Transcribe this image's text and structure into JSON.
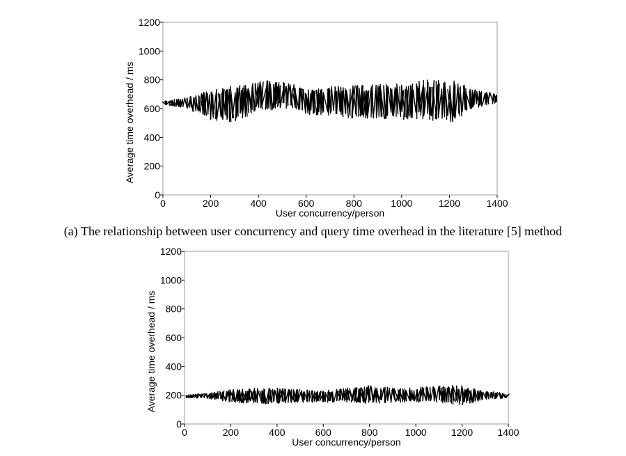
{
  "caption_a": "(a) The relationship between user concurrency and query time overhead in the literature [5] method",
  "chart_data": [
    {
      "type": "line",
      "title": "",
      "xlabel": "User concurrency/person",
      "ylabel": "Average time overhead / ms",
      "xlim": [
        0,
        1400
      ],
      "ylim": [
        0,
        1200
      ],
      "xticks": [
        0,
        200,
        400,
        600,
        800,
        1000,
        1200,
        1400
      ],
      "yticks": [
        0,
        200,
        400,
        600,
        800,
        1000,
        1200
      ],
      "grid": false,
      "series": [
        {
          "x": [
            0,
            100,
            200,
            300,
            400,
            500,
            600,
            700,
            800,
            900,
            1000,
            1100,
            1200,
            1300,
            1400
          ],
          "y_min": [
            630,
            600,
            520,
            500,
            580,
            600,
            560,
            550,
            530,
            530,
            520,
            520,
            500,
            600,
            640
          ],
          "y_max": [
            650,
            680,
            740,
            760,
            790,
            800,
            730,
            760,
            760,
            770,
            780,
            800,
            800,
            740,
            700
          ],
          "y_mean": [
            640,
            640,
            630,
            630,
            690,
            700,
            640,
            650,
            640,
            650,
            650,
            660,
            650,
            670,
            670
          ]
        }
      ]
    },
    {
      "type": "line",
      "title": "",
      "xlabel": "User concurrency/person",
      "ylabel": "Average time overhead / ms",
      "xlim": [
        0,
        1400
      ],
      "ylim": [
        0,
        1200
      ],
      "xticks": [
        0,
        200,
        400,
        600,
        800,
        1000,
        1200,
        1400
      ],
      "yticks": [
        0,
        200,
        400,
        600,
        800,
        1000,
        1200
      ],
      "grid": false,
      "series": [
        {
          "x": [
            0,
            100,
            200,
            300,
            400,
            500,
            600,
            700,
            800,
            900,
            1000,
            1100,
            1200,
            1300,
            1400
          ],
          "y_min": [
            180,
            180,
            150,
            140,
            140,
            150,
            150,
            150,
            140,
            150,
            150,
            150,
            130,
            170,
            180
          ],
          "y_max": [
            200,
            215,
            240,
            250,
            250,
            240,
            230,
            250,
            270,
            250,
            255,
            265,
            270,
            230,
            210
          ],
          "y_mean": [
            190,
            195,
            195,
            195,
            195,
            195,
            190,
            200,
            205,
            200,
            200,
            205,
            200,
            200,
            195
          ]
        }
      ]
    }
  ]
}
